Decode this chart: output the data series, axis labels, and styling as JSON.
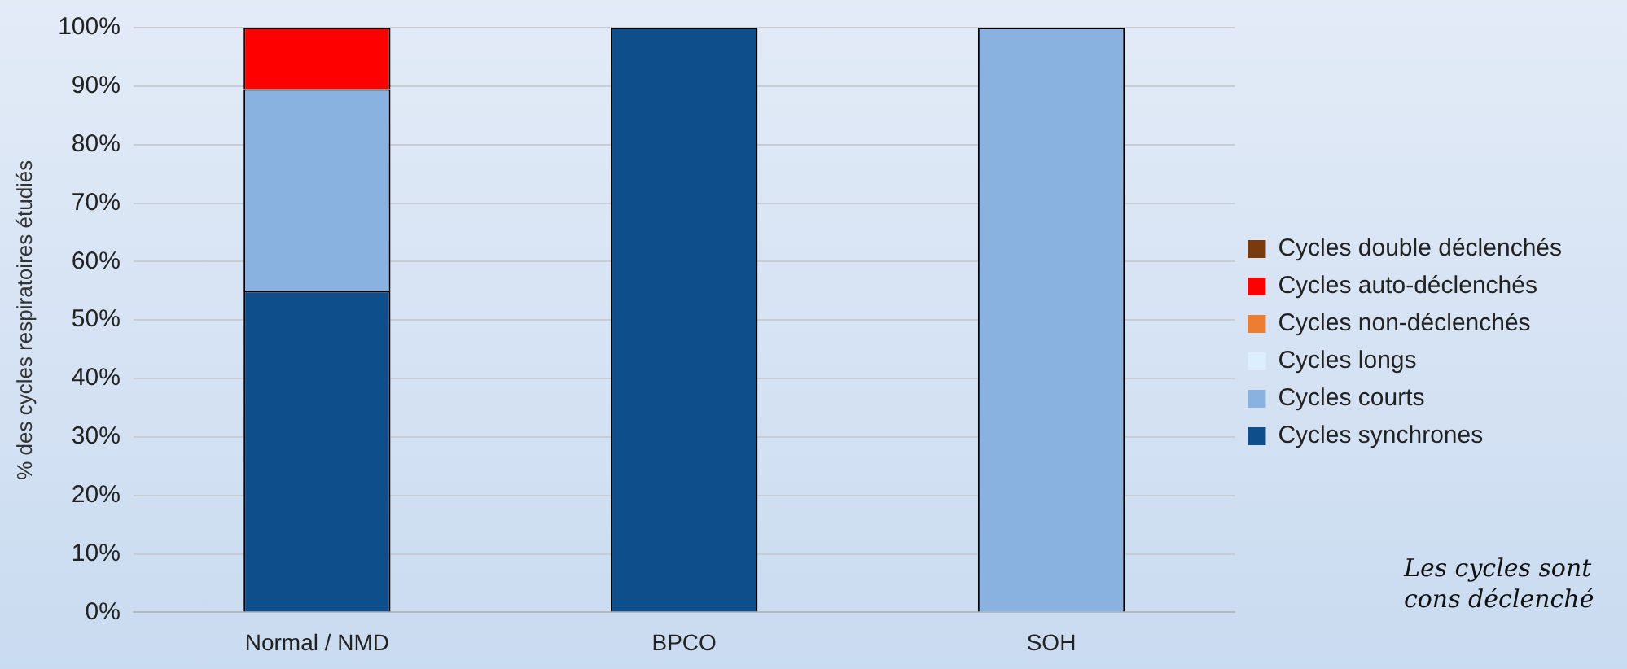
{
  "chart_data": {
    "type": "bar",
    "stacked": true,
    "ylabel": "% des cycles respiratoires étudiés",
    "categories": [
      "Normal / NMD",
      "BPCO",
      "SOH"
    ],
    "series": [
      {
        "name": "Cycles synchrones",
        "color": "#0e4e8a",
        "values": [
          55,
          100,
          0
        ]
      },
      {
        "name": "Cycles courts",
        "color": "#8ab2e0",
        "values": [
          34.5,
          0,
          100
        ]
      },
      {
        "name": "Cycles longs",
        "color": "#dcefff",
        "values": [
          0,
          0,
          0
        ]
      },
      {
        "name": "Cycles non-déclenchés",
        "color": "#ed7d31",
        "values": [
          0,
          0,
          0
        ]
      },
      {
        "name": "Cycles auto-déclenchés",
        "color": "#ff0000",
        "values": [
          10.5,
          0,
          0
        ]
      },
      {
        "name": "Cycles double déclenchés",
        "color": "#7b3a0e",
        "values": [
          0,
          0,
          0
        ]
      }
    ],
    "ylim": [
      0,
      100
    ],
    "yticks": [
      {
        "value": 0,
        "label": "0%"
      },
      {
        "value": 10,
        "label": "10%"
      },
      {
        "value": 20,
        "label": "20%"
      },
      {
        "value": 30,
        "label": "30%"
      },
      {
        "value": 40,
        "label": "40%"
      },
      {
        "value": 50,
        "label": "50%"
      },
      {
        "value": 60,
        "label": "60%"
      },
      {
        "value": 70,
        "label": "70%"
      },
      {
        "value": 80,
        "label": "80%"
      },
      {
        "value": 90,
        "label": "90%"
      },
      {
        "value": 100,
        "label": "100%"
      }
    ],
    "grid": "y",
    "legend": "right",
    "annotations": [
      "Les cycles sont cons déclenché"
    ]
  }
}
